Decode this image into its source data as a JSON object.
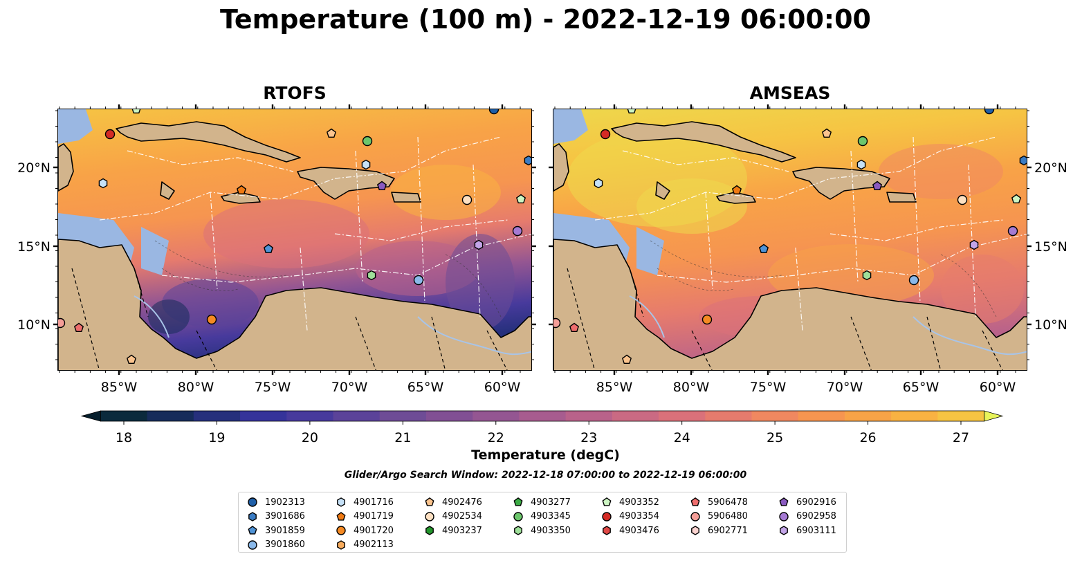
{
  "title": "Temperature (100 m) - 2022-12-19 06:00:00",
  "panels": [
    {
      "title": "RTOFS"
    },
    {
      "title": "AMSEAS"
    }
  ],
  "lon_ticks": [
    "85°W",
    "80°W",
    "75°W",
    "70°W",
    "65°W",
    "60°W"
  ],
  "lat_ticks": [
    "20°N",
    "15°N",
    "10°N"
  ],
  "colorbar": {
    "label": "Temperature (degC)",
    "ticks": [
      "18",
      "19",
      "20",
      "21",
      "22",
      "23",
      "24",
      "25",
      "26",
      "27"
    ],
    "min": 18,
    "max": 27,
    "extend": "both",
    "colors": [
      "#0b2a3c",
      "#162c5a",
      "#26307c",
      "#35339a",
      "#473a9c",
      "#5b4399",
      "#6e4c96",
      "#814f94",
      "#945692",
      "#a75c8f",
      "#b9628a",
      "#ca6a83",
      "#da717a",
      "#e67b6d",
      "#f08860",
      "#f69550",
      "#f8a347",
      "#f9b242",
      "#f6c443",
      "#eed84c"
    ],
    "under_color": "#051e2c",
    "over_color": "#e8f45a"
  },
  "search_window": "Glider/Argo Search Window: 2022-12-18 07:00:00 to 2022-12-19 06:00:00",
  "legend": [
    {
      "id": "1902313",
      "marker": "circle",
      "color": "#1f5fa8"
    },
    {
      "id": "3901686",
      "marker": "hexagon",
      "color": "#3a7cc4"
    },
    {
      "id": "3901859",
      "marker": "pentagon",
      "color": "#4f93d6"
    },
    {
      "id": "3901860",
      "marker": "circle",
      "color": "#8ab9ea"
    },
    {
      "id": "4901716",
      "marker": "hexagon",
      "color": "#c6e1f7"
    },
    {
      "id": "4901719",
      "marker": "pentagon",
      "color": "#f07a12"
    },
    {
      "id": "4901720",
      "marker": "circle",
      "color": "#f58a23"
    },
    {
      "id": "4902113",
      "marker": "hexagon",
      "color": "#f7ab5c"
    },
    {
      "id": "4902476",
      "marker": "pentagon",
      "color": "#fbc48e"
    },
    {
      "id": "4902534",
      "marker": "circle",
      "color": "#fde0c2"
    },
    {
      "id": "4903237",
      "marker": "hexagon",
      "color": "#23962c"
    },
    {
      "id": "4903277",
      "marker": "pentagon",
      "color": "#3aab44"
    },
    {
      "id": "4903345",
      "marker": "circle",
      "color": "#6cc66c"
    },
    {
      "id": "4903350",
      "marker": "hexagon",
      "color": "#9fe09a"
    },
    {
      "id": "4903352",
      "marker": "pentagon",
      "color": "#cdf5c3"
    },
    {
      "id": "4903354",
      "marker": "circle",
      "color": "#d42a24"
    },
    {
      "id": "4903476",
      "marker": "hexagon",
      "color": "#e04846"
    },
    {
      "id": "5906478",
      "marker": "pentagon",
      "color": "#ee6d6d"
    },
    {
      "id": "5906480",
      "marker": "circle",
      "color": "#f59e98"
    },
    {
      "id": "6902771",
      "marker": "hexagon",
      "color": "#fbd3d0"
    },
    {
      "id": "6902916",
      "marker": "pentagon",
      "color": "#8a5ac0"
    },
    {
      "id": "6902958",
      "marker": "circle",
      "color": "#a57ad3"
    },
    {
      "id": "6903111",
      "marker": "hexagon",
      "color": "#c3a5e8"
    }
  ],
  "map_colors": {
    "land": "#d2b48c",
    "shallow": "#9ab7e2",
    "river": "#a8c4e8"
  }
}
